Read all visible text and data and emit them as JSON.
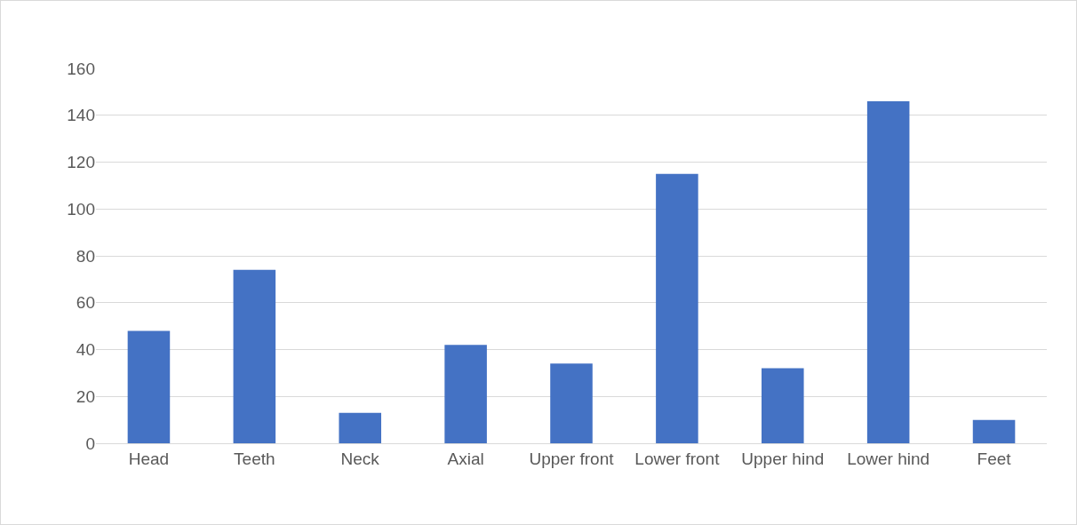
{
  "chart_data": {
    "type": "bar",
    "categories": [
      "Head",
      "Teeth",
      "Neck",
      "Axial",
      "Upper front",
      "Lower front",
      "Upper hind",
      "Lower hind",
      "Feet"
    ],
    "values": [
      48,
      74,
      13,
      42,
      34,
      115,
      32,
      146,
      10
    ],
    "color": "#4472c4",
    "ylim": [
      0,
      160
    ],
    "yticks": [
      0,
      20,
      40,
      60,
      80,
      100,
      120,
      140,
      160
    ],
    "grid": "y",
    "legend": false
  }
}
